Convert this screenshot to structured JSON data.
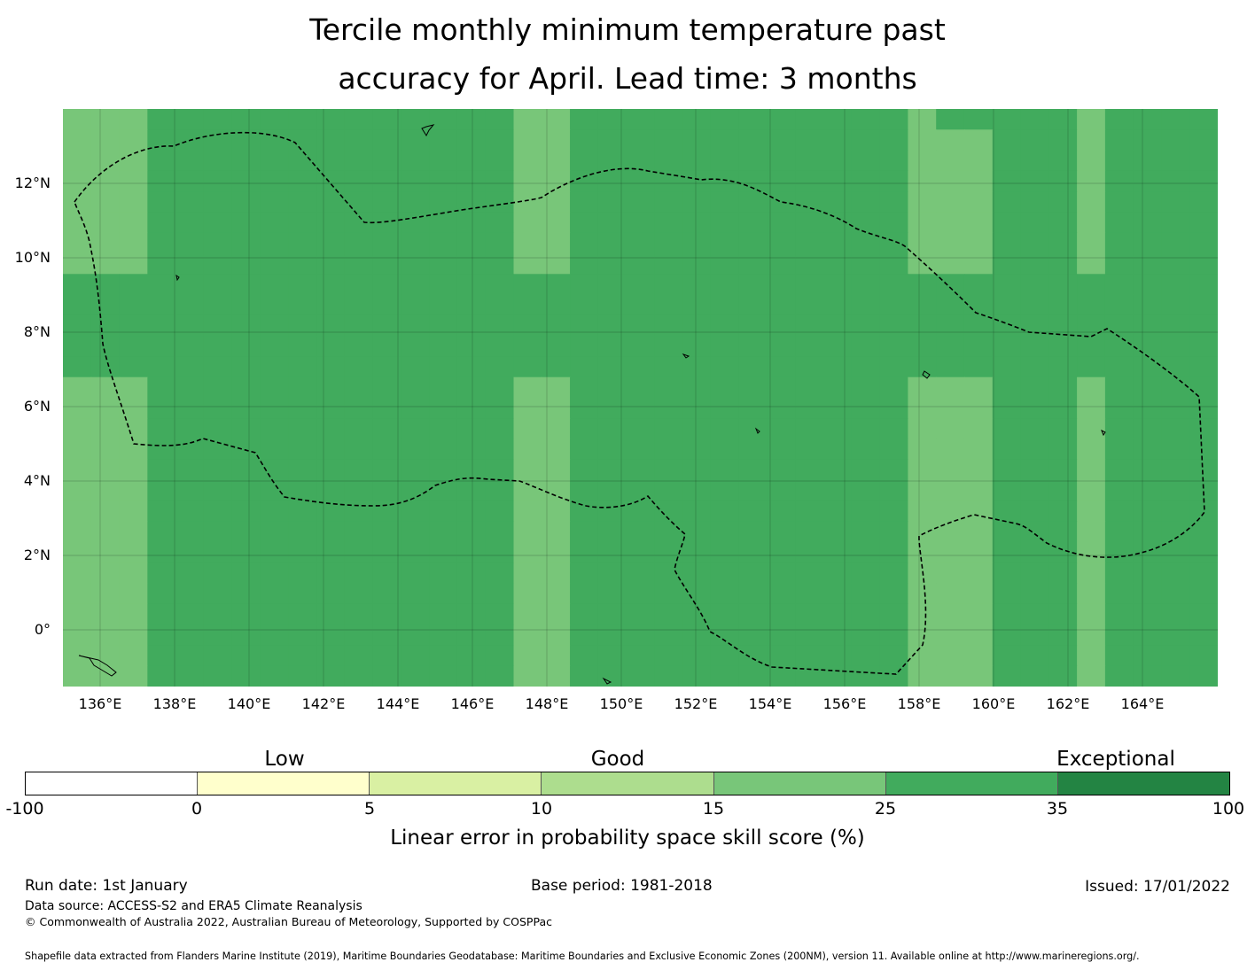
{
  "title": {
    "line1": "Tercile monthly minimum temperature past",
    "line2": "accuracy for April. Lead time: 3 months"
  },
  "map": {
    "lat_labels": [
      "12°N",
      "10°N",
      "8°N",
      "6°N",
      "4°N",
      "2°N",
      "0°"
    ],
    "lon_labels": [
      "136°E",
      "138°E",
      "140°E",
      "142°E",
      "144°E",
      "146°E",
      "148°E",
      "150°E",
      "152°E",
      "154°E",
      "156°E",
      "158°E",
      "160°E",
      "162°E",
      "164°E"
    ],
    "grid_rows": [
      "44455555555555554455555555555545555545555",
      "44455555555555554455555555555544455545555",
      "44455555555555554455555555555544455545555",
      "44455555555555554455555555555544455545555",
      "44455555555555554455555555555544455545555",
      "44455555555555554455555555555544455545555",
      "44455555555555554455555555555544455545555",
      "44455555555555554455555555555544455545555",
      "55555555555555555555555555555555555555555",
      "55555555555555555555555555555555555555555",
      "55555555555555555555555555555555555555555",
      "55555555555555555555555555555555555555555",
      "55555555555555555555555555555555555555555",
      "44455555555555554455555555555544455545555",
      "44455555555555554455555555555544455545555",
      "44455555555555554455555555555544455545555",
      "44455555555555554455555555555544455545555",
      "44455555555555554455555555555544455545555",
      "44455555555555554455555555555544455545555",
      "44455555555555554455555555555544455545555",
      "44455555555555554455555555555544455545555",
      "44455555555555554455555555555544455545555",
      "44455555555555554455555555555544455545555",
      "44455555555555554455555555555544455545555",
      "44455555555555554455555555555544455545555",
      "44455555555555554455555555555544455545555",
      "44455555555555554455555555555544455545555",
      "44455555555555554455555555555544455545555"
    ],
    "colors": {
      "c0": "#ffffff",
      "c1": "#ffffcc",
      "c2": "#d9f0a3",
      "c3": "#addd8e",
      "c4": "#78c679",
      "c5": "#41ab5d",
      "c6": "#238443"
    }
  },
  "legend": {
    "categories": [
      "Low",
      "Good",
      "Exceptional"
    ],
    "ticks": [
      "-100",
      "0",
      "5",
      "10",
      "15",
      "25",
      "35",
      "100"
    ],
    "label": "Linear error in probability space skill score (%)"
  },
  "footer": {
    "run_date": "Run date: 1st January",
    "base_period": "Base period: 1981-2018",
    "issued": "Issued: 17/01/2022",
    "data_source": "Data source: ACCESS-S2 and ERA5 Climate Reanalysis",
    "copyright": "© Commonwealth of Australia 2022, Australian Bureau of Meteorology, Supported by COSPPac",
    "shapefile": "Shapefile data extracted from Flanders Marine Institute (2019), Maritime Boundaries Geodatabase: Maritime Boundaries and Exclusive Economic Zones (200NM), version 11. Available online at http://www.marineregions.org/."
  }
}
